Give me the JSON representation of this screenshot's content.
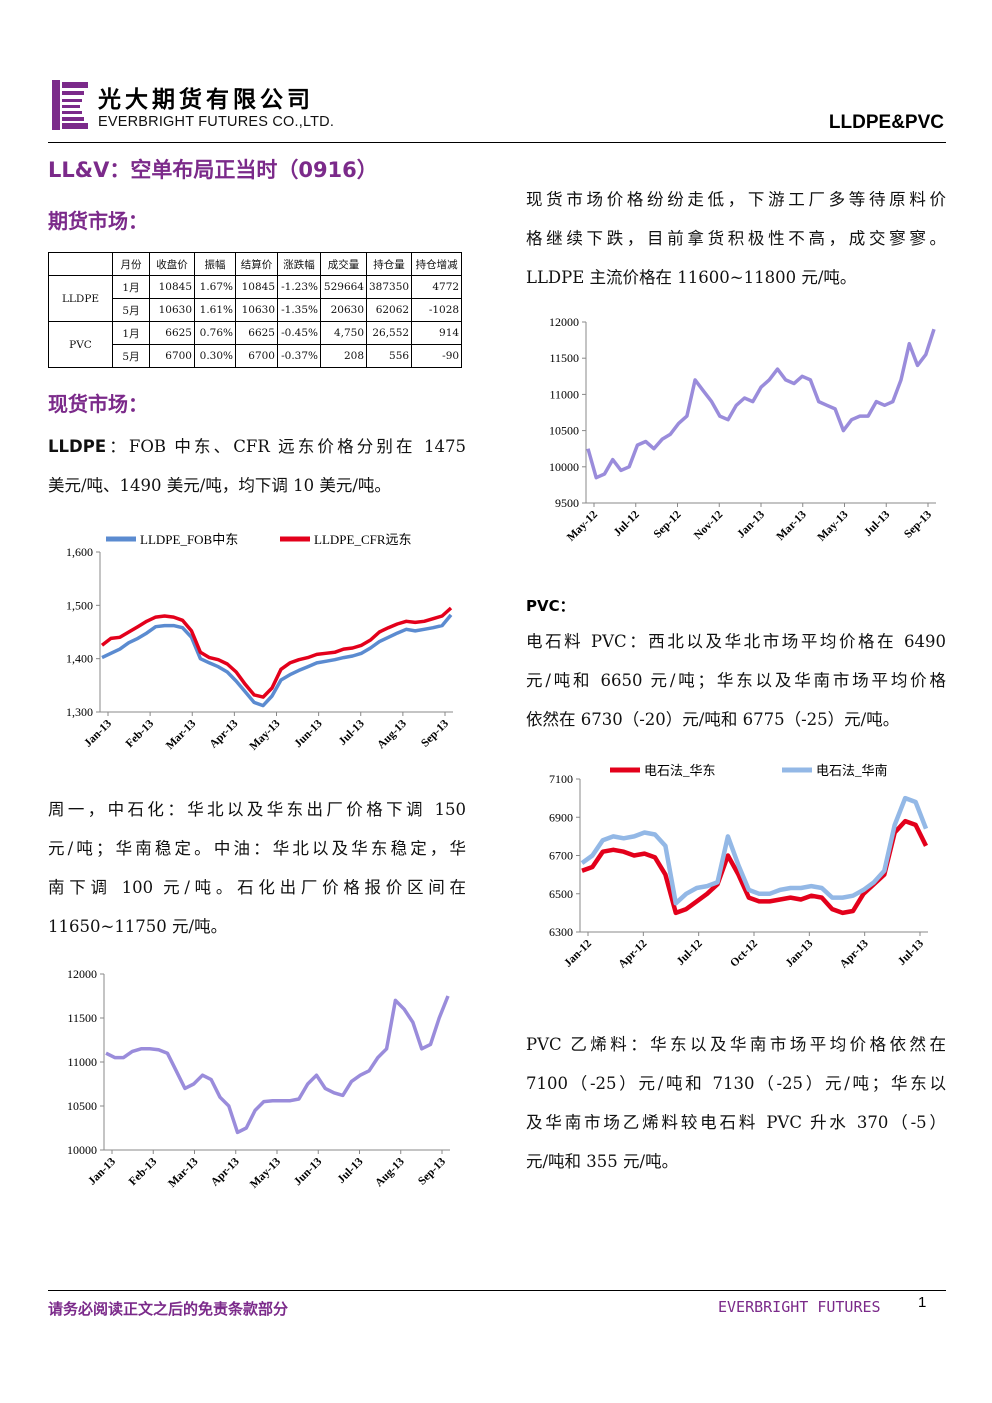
{
  "header": {
    "company_cn": "光大期货有限公司",
    "company_en": "EVERBRIGHT FUTURES CO.,LTD.",
    "report_tag": "LLDPE&PVC",
    "logo_color": "#7b2a8a"
  },
  "title": "LL&V：空单布局正当时（0916）",
  "futures": {
    "heading": "期货市场：",
    "columns": [
      "月份",
      "收盘价",
      "振幅",
      "结算价",
      "涨跌幅",
      "成交量",
      "持仓量",
      "持仓增减"
    ],
    "groups": [
      {
        "name": "LLDPE",
        "rows": [
          [
            "1月",
            "10845",
            "1.67%",
            "10845",
            "-1.23%",
            "529664",
            "387350",
            "4772"
          ],
          [
            "5月",
            "10630",
            "1.61%",
            "10630",
            "-1.35%",
            "20630",
            "62062",
            "-1028"
          ]
        ]
      },
      {
        "name": "PVC",
        "rows": [
          [
            "1月",
            "6625",
            "0.76%",
            "6625",
            "-0.45%",
            "4,750",
            "26,552",
            "914"
          ],
          [
            "5月",
            "6700",
            "0.30%",
            "6700",
            "-0.37%",
            "208",
            "556",
            "-90"
          ]
        ]
      }
    ]
  },
  "spot": {
    "heading": "现货市场：",
    "lldpe_label": "LLDPE",
    "lldpe_line1": "：FOB 中东、CFR 远东价格分别在 1475",
    "lldpe_line2": "美元/吨、1490 美元/吨，均下调 10 美元/吨。",
    "para2": [
      "周一，中石化：华北以及华东出厂价格下调 150",
      "元/吨；华南稳定。中油：华北以及华东稳定，华",
      "南下调 100 元/吨。石化出厂价格报价区间在",
      "11650~11750 元/吨。"
    ]
  },
  "right": {
    "para1": [
      "现货市场价格纷纷走低，下游工厂多等待原料价",
      "格继续下跌，目前拿货积极性不高，成交寥寥。",
      "LLDPE 主流价格在 11600~11800 元/吨。"
    ],
    "pvc_label": "PVC",
    "pvc_colon": "：",
    "para_pvc": [
      "电石料 PVC：西北以及华北市场平均价格在 6490",
      "元/吨和 6650 元/吨；华东以及华南市场平均价格",
      "依然在 6730（-20）元/吨和 6775（-25）元/吨。"
    ],
    "para_ethylene": [
      "PVC 乙烯料：华东以及华南市场平均价格依然在",
      "7100（-25）元/吨和 7130（-25）元/吨；华东以",
      "及华南市场乙烯料较电石料 PVC 升水 370（-5）",
      "元/吨和 355 元/吨。"
    ]
  },
  "footer": {
    "disclaimer": "请务必阅读正文之后的免责条款部分",
    "brand": "EVERBRIGHT FUTURES",
    "page": "1"
  },
  "chart_data": [
    {
      "type": "line",
      "series": [
        {
          "name": "LLDPE_FOB中东",
          "color": "#5b8bd0",
          "values": [
            1402,
            1410,
            1418,
            1430,
            1438,
            1448,
            1460,
            1462,
            1462,
            1458,
            1440,
            1400,
            1392,
            1385,
            1375,
            1358,
            1338,
            1318,
            1312,
            1330,
            1360,
            1370,
            1378,
            1385,
            1392,
            1395,
            1398,
            1402,
            1405,
            1410,
            1420,
            1432,
            1440,
            1448,
            1455,
            1452,
            1455,
            1458,
            1462,
            1482
          ]
        },
        {
          "name": "LLDPE_CFR远东",
          "color": "#e3001b",
          "values": [
            1425,
            1438,
            1440,
            1450,
            1460,
            1470,
            1478,
            1480,
            1478,
            1472,
            1452,
            1412,
            1402,
            1398,
            1390,
            1375,
            1352,
            1332,
            1328,
            1345,
            1380,
            1392,
            1398,
            1402,
            1408,
            1410,
            1412,
            1418,
            1420,
            1425,
            1435,
            1450,
            1458,
            1465,
            1470,
            1468,
            1470,
            1475,
            1480,
            1495
          ]
        }
      ],
      "x_labels": [
        "Jan-13",
        "Feb-13",
        "Mar-13",
        "Apr-13",
        "May-13",
        "Jun-13",
        "Jul-13",
        "Aug-13",
        "Sep-13"
      ],
      "ylim": [
        1300,
        1600
      ],
      "y_ticks": [
        "1,300",
        "1,400",
        "1,500",
        "1,600"
      ],
      "legend": "top",
      "grid": false
    },
    {
      "type": "line",
      "series": [
        {
          "name": "",
          "color": "#9a8cdb",
          "values": [
            11100,
            11050,
            11050,
            11120,
            11150,
            11150,
            11140,
            11100,
            10900,
            10700,
            10750,
            10850,
            10800,
            10600,
            10500,
            10200,
            10250,
            10450,
            10550,
            10560,
            10560,
            10560,
            10580,
            10750,
            10850,
            10700,
            10650,
            10620,
            10780,
            10850,
            10900,
            11050,
            11150,
            11700,
            11600,
            11450,
            11150,
            11200,
            11500,
            11750
          ]
        }
      ],
      "x_labels": [
        "Jan-13",
        "Feb-13",
        "Mar-13",
        "Apr-13",
        "May-13",
        "Jun-13",
        "Jul-13",
        "Aug-13",
        "Sep-13"
      ],
      "ylim": [
        10000,
        12000
      ],
      "y_ticks": [
        "10000",
        "10500",
        "11000",
        "11500",
        "12000"
      ],
      "grid": false
    },
    {
      "type": "line",
      "series": [
        {
          "name": "",
          "color": "#9a8cdb",
          "values": [
            10250,
            9850,
            9900,
            10100,
            9950,
            10000,
            10300,
            10350,
            10250,
            10380,
            10450,
            10600,
            10700,
            11200,
            11050,
            10900,
            10700,
            10650,
            10850,
            10950,
            10900,
            11100,
            11200,
            11350,
            11200,
            11150,
            11250,
            11200,
            10900,
            10850,
            10800,
            10500,
            10650,
            10700,
            10700,
            10900,
            10850,
            10900,
            11200,
            11700,
            11400,
            11550,
            11900
          ]
        }
      ],
      "x_labels": [
        "May-12",
        "Jul-12",
        "Sep-12",
        "Nov-12",
        "Jan-13",
        "Mar-13",
        "May-13",
        "Jul-13",
        "Sep-13"
      ],
      "ylim": [
        9500,
        12000
      ],
      "y_ticks": [
        "9500",
        "10000",
        "10500",
        "11000",
        "11500",
        "12000"
      ],
      "grid": false
    },
    {
      "type": "line",
      "series": [
        {
          "name": "电石法_华东",
          "color": "#e3001b",
          "values": [
            6620,
            6640,
            6720,
            6730,
            6720,
            6700,
            6710,
            6690,
            6600,
            6400,
            6420,
            6460,
            6500,
            6550,
            6700,
            6600,
            6480,
            6460,
            6460,
            6470,
            6480,
            6470,
            6490,
            6480,
            6420,
            6400,
            6410,
            6500,
            6550,
            6600,
            6820,
            6880,
            6860,
            6750
          ]
        },
        {
          "name": "电石法_华南",
          "color": "#93b8e6",
          "values": [
            6660,
            6700,
            6780,
            6800,
            6790,
            6800,
            6820,
            6810,
            6750,
            6450,
            6500,
            6530,
            6540,
            6560,
            6800,
            6650,
            6520,
            6500,
            6500,
            6520,
            6530,
            6530,
            6540,
            6530,
            6480,
            6480,
            6490,
            6520,
            6560,
            6620,
            6860,
            7000,
            6980,
            6840
          ]
        }
      ],
      "x_labels": [
        "Jan-12",
        "Apr-12",
        "Jul-12",
        "Oct-12",
        "Jan-13",
        "Apr-13",
        "Jul-13"
      ],
      "ylim": [
        6300,
        7100
      ],
      "y_ticks": [
        "6300",
        "6500",
        "6700",
        "6900",
        "7100"
      ],
      "legend": "top",
      "grid": false
    }
  ]
}
